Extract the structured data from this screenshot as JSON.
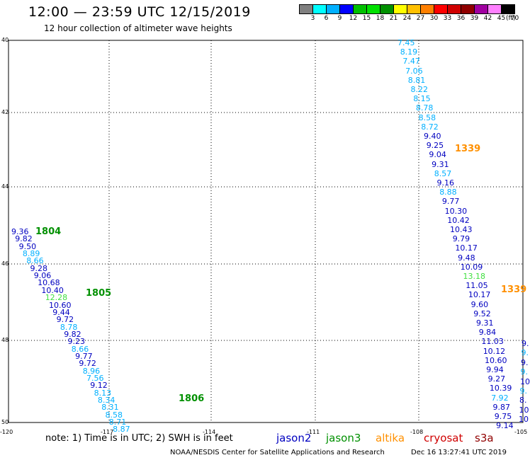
{
  "title": "12:00 — 23:59 UTC 12/15/2019",
  "subtitle": "12 hour collection of altimeter wave heights",
  "legend": {
    "unit": "(ft)",
    "colors": [
      "#808080",
      "#00ffff",
      "#00b0ff",
      "#0000ff",
      "#00c000",
      "#00e000",
      "#009000",
      "#ffff00",
      "#ffc000",
      "#ff8000",
      "#ff0000",
      "#d00000",
      "#900000",
      "#a000a0",
      "#ff80ff",
      "#000000"
    ],
    "labels": [
      "3",
      "6",
      "9",
      "12",
      "15",
      "18",
      "21",
      "24",
      "27",
      "30",
      "33",
      "36",
      "39",
      "42",
      "45",
      "70"
    ]
  },
  "lat_labels": [
    "40",
    "42",
    "44",
    "46",
    "48",
    "50"
  ],
  "lon_labels": [
    "-120",
    "-117",
    "-114",
    "-111",
    "-108",
    "-105"
  ],
  "note": "note: 1) Time is in UTC; 2) SWH is in feet",
  "satellites": [
    {
      "name": "jason2",
      "color": "#0000c0"
    },
    {
      "name": "jason3",
      "color": "#009000"
    },
    {
      "name": "altika",
      "color": "#ff9000"
    },
    {
      "name": "cryosat",
      "color": "#d00000"
    },
    {
      "name": "s3a",
      "color": "#900000"
    }
  ],
  "footer_left": "NOAA/NESDIS Center for Satellite Applications and Research",
  "footer_right": "Dec 16 13:27:41 UTC 2019",
  "tracks": [
    {
      "id": "west",
      "values": [
        {
          "v": "9.36",
          "c": "#0000c0"
        },
        {
          "v": "9.82",
          "c": "#0000c0"
        },
        {
          "v": "9.50",
          "c": "#0000c0"
        },
        {
          "v": "8.89",
          "c": "#00b0ff"
        },
        {
          "v": "8.66",
          "c": "#00b0ff"
        },
        {
          "v": "9.28",
          "c": "#0000c0"
        },
        {
          "v": "9.06",
          "c": "#0000c0"
        },
        {
          "v": "10.68",
          "c": "#0000c0"
        },
        {
          "v": "10.40",
          "c": "#0000c0"
        },
        {
          "v": "12.28",
          "c": "#40e040"
        },
        {
          "v": "10.60",
          "c": "#0000c0"
        },
        {
          "v": "9.44",
          "c": "#0000c0"
        },
        {
          "v": "9.72",
          "c": "#0000c0"
        },
        {
          "v": "8.78",
          "c": "#00b0ff"
        },
        {
          "v": "9.82",
          "c": "#0000c0"
        },
        {
          "v": "9.23",
          "c": "#0000c0"
        },
        {
          "v": "8.66",
          "c": "#00b0ff"
        },
        {
          "v": "9.77",
          "c": "#0000c0"
        },
        {
          "v": "9.72",
          "c": "#0000c0"
        },
        {
          "v": "8.96",
          "c": "#00b0ff"
        },
        {
          "v": "7.56",
          "c": "#00b0ff"
        },
        {
          "v": "9.12",
          "c": "#0000c0"
        },
        {
          "v": "8.13",
          "c": "#00b0ff"
        },
        {
          "v": "8.34",
          "c": "#00b0ff"
        },
        {
          "v": "8.31",
          "c": "#00b0ff"
        },
        {
          "v": "8.58",
          "c": "#00b0ff"
        },
        {
          "v": "8.71",
          "c": "#00b0ff"
        },
        {
          "v": "8.87",
          "c": "#00b0ff"
        }
      ],
      "times": [
        {
          "t": "1804",
          "c": "#009000"
        },
        {
          "t": "1805",
          "c": "#009000"
        },
        {
          "t": "1806",
          "c": "#009000"
        }
      ]
    },
    {
      "id": "east",
      "values": [
        {
          "v": "7.45",
          "c": "#00b0ff"
        },
        {
          "v": "8.19",
          "c": "#00b0ff"
        },
        {
          "v": "7.47",
          "c": "#00b0ff"
        },
        {
          "v": "7.06",
          "c": "#00b0ff"
        },
        {
          "v": "8.81",
          "c": "#00b0ff"
        },
        {
          "v": "8.22",
          "c": "#00b0ff"
        },
        {
          "v": "8.15",
          "c": "#00b0ff"
        },
        {
          "v": "8.78",
          "c": "#00b0ff"
        },
        {
          "v": "8.58",
          "c": "#00b0ff"
        },
        {
          "v": "8.72",
          "c": "#00b0ff"
        },
        {
          "v": "9.40",
          "c": "#0000c0"
        },
        {
          "v": "9.25",
          "c": "#0000c0"
        },
        {
          "v": "9.04",
          "c": "#0000c0"
        },
        {
          "v": "9.31",
          "c": "#0000c0"
        },
        {
          "v": "8.57",
          "c": "#00b0ff"
        },
        {
          "v": "9.16",
          "c": "#0000c0"
        },
        {
          "v": "8.88",
          "c": "#00b0ff"
        },
        {
          "v": "9.77",
          "c": "#0000c0"
        },
        {
          "v": "10.30",
          "c": "#0000c0"
        },
        {
          "v": "10.42",
          "c": "#0000c0"
        },
        {
          "v": "10.43",
          "c": "#0000c0"
        },
        {
          "v": "9.79",
          "c": "#0000c0"
        },
        {
          "v": "10.17",
          "c": "#0000c0"
        },
        {
          "v": "9.48",
          "c": "#0000c0"
        },
        {
          "v": "10.09",
          "c": "#0000c0"
        },
        {
          "v": "13.18",
          "c": "#40e040"
        },
        {
          "v": "11.05",
          "c": "#0000c0"
        },
        {
          "v": "10.17",
          "c": "#0000c0"
        },
        {
          "v": "9.60",
          "c": "#0000c0"
        },
        {
          "v": "9.52",
          "c": "#0000c0"
        },
        {
          "v": "9.31",
          "c": "#0000c0"
        },
        {
          "v": "9.84",
          "c": "#0000c0"
        },
        {
          "v": "11.03",
          "c": "#0000c0"
        },
        {
          "v": "10.12",
          "c": "#0000c0"
        },
        {
          "v": "10.60",
          "c": "#0000c0"
        },
        {
          "v": "9.94",
          "c": "#0000c0"
        },
        {
          "v": "9.27",
          "c": "#0000c0"
        },
        {
          "v": "10.39",
          "c": "#0000c0"
        },
        {
          "v": "7.92",
          "c": "#00b0ff"
        },
        {
          "v": "9.87",
          "c": "#0000c0"
        },
        {
          "v": "9.75",
          "c": "#0000c0"
        },
        {
          "v": "9.14",
          "c": "#0000c0"
        }
      ],
      "times": [
        {
          "t": "1339",
          "c": "#ff9000"
        },
        {
          "t": "1339",
          "c": "#ff9000"
        }
      ]
    },
    {
      "id": "edge",
      "values": [
        {
          "v": "9.",
          "c": "#0000c0"
        },
        {
          "v": "9.",
          "c": "#00b0ff"
        },
        {
          "v": "9.",
          "c": "#0000c0"
        },
        {
          "v": "9.",
          "c": "#00b0ff"
        },
        {
          "v": "10",
          "c": "#0000c0"
        },
        {
          "v": "9.",
          "c": "#00b0ff"
        },
        {
          "v": "8.",
          "c": "#0000c0"
        },
        {
          "v": "10",
          "c": "#0000c0"
        },
        {
          "v": "10",
          "c": "#0000c0"
        }
      ]
    }
  ]
}
